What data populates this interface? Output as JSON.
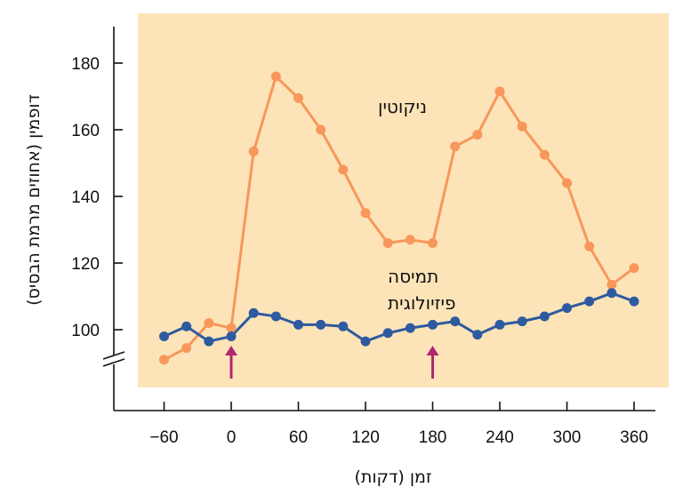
{
  "chart_data": {
    "type": "line",
    "xlabel": "זמן (דקות)",
    "ylabel": "דופמין (אחוזים מרמת הבסיס)",
    "x_ticks": [
      -60,
      0,
      60,
      120,
      180,
      240,
      300,
      360
    ],
    "y_ticks": [
      100,
      120,
      140,
      160,
      180
    ],
    "xlim": [
      -85,
      375
    ],
    "ylim": [
      91,
      192
    ],
    "y_axis_break": true,
    "grid": false,
    "background_color": "#fde4b8",
    "injection_markers_x": [
      0,
      180
    ],
    "marker_color": "#b0276e",
    "series": [
      {
        "name": "ניקוטין",
        "color": "#f7975a",
        "x": [
          -60,
          -40,
          -20,
          0,
          20,
          40,
          60,
          80,
          100,
          120,
          140,
          160,
          180,
          200,
          220,
          240,
          260,
          280,
          300,
          320,
          340,
          360
        ],
        "y": [
          91,
          94.5,
          102,
          100.5,
          153.5,
          176,
          169.5,
          160,
          148,
          135,
          126,
          127,
          126,
          155,
          158.5,
          171.5,
          161,
          152.5,
          144,
          125,
          113.5,
          118.5
        ]
      },
      {
        "name": "תמיסה פיזיולוגית",
        "color": "#2e5aa0",
        "x": [
          -60,
          -40,
          -20,
          0,
          20,
          40,
          60,
          80,
          100,
          120,
          140,
          160,
          180,
          200,
          220,
          240,
          260,
          280,
          300,
          320,
          340,
          360
        ],
        "y": [
          98,
          101,
          96.5,
          98,
          105,
          104,
          101.5,
          101.5,
          101,
          96.5,
          99,
          100.5,
          101.5,
          102.5,
          98.5,
          101.5,
          102.5,
          104,
          106.5,
          108.5,
          111,
          108.5
        ]
      }
    ],
    "series_labels": {
      "nicotine": "ניקוטין",
      "saline_line1": "תמיסה",
      "saline_line2": "פיזיולוגית"
    }
  }
}
